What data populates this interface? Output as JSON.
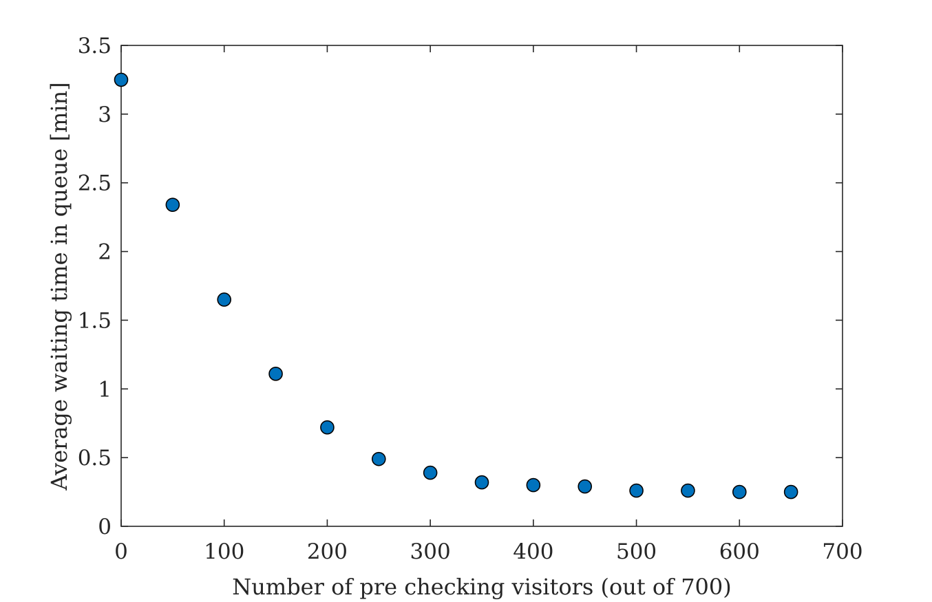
{
  "chart_data": {
    "type": "scatter",
    "title": "",
    "xlabel": "Number of pre checking visitors (out of 700)",
    "ylabel": "Average waiting time in queue [min]",
    "xlim": [
      0,
      700
    ],
    "ylim": [
      0,
      3.5
    ],
    "xticks": [
      "0",
      "100",
      "200",
      "300",
      "400",
      "500",
      "600",
      "700"
    ],
    "yticks": [
      "0",
      "0.5",
      "1",
      "1.5",
      "2",
      "2.5",
      "3",
      "3.5"
    ],
    "grid": false,
    "legend": "none",
    "marker_color": "#0072BD",
    "points": [
      {
        "x": 0,
        "y": 3.25
      },
      {
        "x": 50,
        "y": 2.34
      },
      {
        "x": 100,
        "y": 1.65
      },
      {
        "x": 150,
        "y": 1.11
      },
      {
        "x": 200,
        "y": 0.72
      },
      {
        "x": 250,
        "y": 0.49
      },
      {
        "x": 300,
        "y": 0.39
      },
      {
        "x": 350,
        "y": 0.32
      },
      {
        "x": 400,
        "y": 0.3
      },
      {
        "x": 450,
        "y": 0.29
      },
      {
        "x": 500,
        "y": 0.26
      },
      {
        "x": 550,
        "y": 0.26
      },
      {
        "x": 600,
        "y": 0.25
      },
      {
        "x": 650,
        "y": 0.25
      }
    ]
  }
}
